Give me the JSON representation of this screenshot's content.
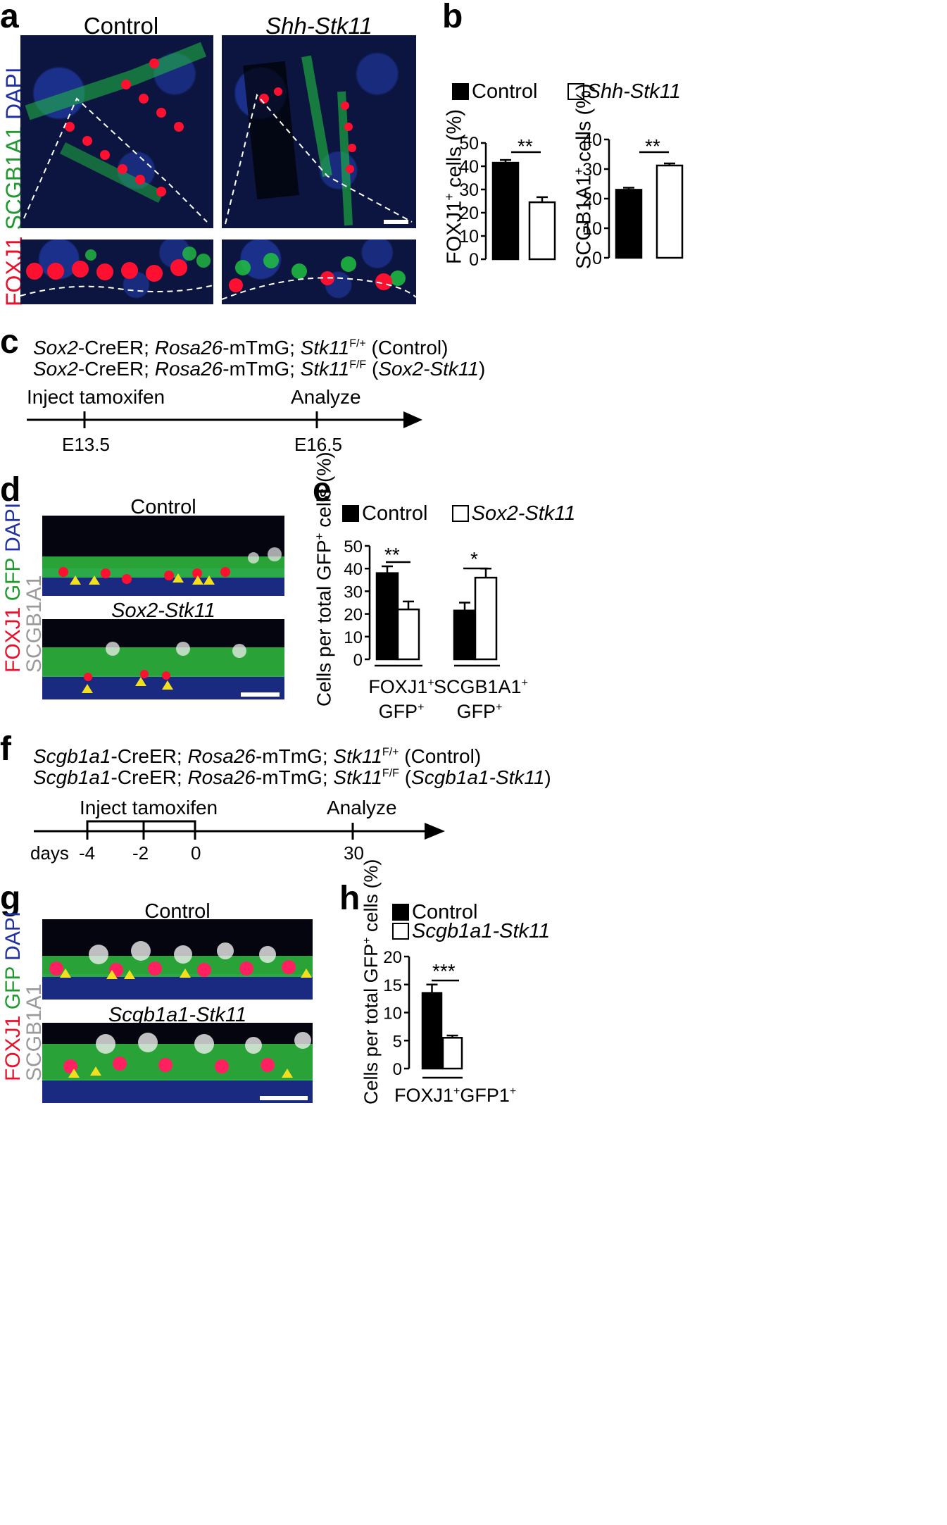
{
  "panels": {
    "a": {
      "label": "a",
      "col_control": "Control",
      "col_mutant": "Shh-Stk11",
      "stain": [
        {
          "text": "FOXJ1",
          "color": "#e8102a"
        },
        {
          "text": "SCGB1A1",
          "color": "#1e9a2e"
        },
        {
          "text": "DAPI",
          "color": "#2030a0"
        }
      ]
    },
    "b": {
      "label": "b",
      "legend_control": "Control",
      "legend_mutant": "Shh-Stk11",
      "ylabel1": "FOXJ1",
      "ylabel1_sup": "+",
      "ylabel1_suffix": " cells (%)",
      "ylabel2": "SCGB1A1",
      "ylabel2_sup": "+",
      "ylabel2_suffix": " cells (%)",
      "sig1": "**",
      "sig2": "**"
    },
    "c": {
      "label": "c",
      "line1": {
        "g1": "Sox2",
        "t1": "-CreER; ",
        "g2": "Rosa26",
        "t2": "-mTmG; ",
        "g3": "Stk11",
        "sup": "F/+",
        "t3": " (Control)"
      },
      "line2": {
        "g1": "Sox2",
        "t1": "-CreER; ",
        "g2": "Rosa26",
        "t2": "-mTmG; ",
        "g3": "Stk11",
        "sup": "F/F",
        "t3": " (",
        "g4": "Sox2-Stk11",
        "t4": ")"
      },
      "event1": "Inject tamoxifen",
      "event2": "Analyze",
      "tick1": "E13.5",
      "tick2": "E16.5"
    },
    "d": {
      "label": "d",
      "title_control": "Control",
      "title_mutant": "Sox2-Stk11",
      "stain": [
        {
          "text": "FOXJ1",
          "color": "#e8102a"
        },
        {
          "text": "GFP",
          "color": "#1e9a2e"
        },
        {
          "text": "DAPI",
          "color": "#2030a0"
        }
      ],
      "stain2": {
        "text": "SCGB1A1",
        "color": "#9a9a9a"
      }
    },
    "e": {
      "label": "e",
      "legend_control": "Control",
      "legend_mutant": "Sox2-Stk11",
      "ylabel_pre": "Cells per total GFP",
      "ylabel_sup": "+",
      "ylabel_suffix": " cells (%)",
      "group1_l1": "FOXJ1",
      "group1_l2": "GFP",
      "group2_l1": "SCGB1A1",
      "group2_l2": "GFP",
      "sup": "+",
      "sig1": "**",
      "sig2": "*"
    },
    "f": {
      "label": "f",
      "line1": {
        "g1": "Scgb1a1",
        "t1": "-CreER; ",
        "g2": "Rosa26",
        "t2": "-mTmG; ",
        "g3": "Stk11",
        "sup": "F/+",
        "t3": " (Control)"
      },
      "line2": {
        "g1": "Scgb1a1",
        "t1": "-CreER; ",
        "g2": "Rosa26",
        "t2": "-mTmG; ",
        "g3": "Stk11",
        "sup": "F/F",
        "t3": " (",
        "g4": "Scgb1a1-Stk11",
        "t4": ")"
      },
      "event1": "Inject tamoxifen",
      "event2": "Analyze",
      "days_label": "days",
      "ticks": [
        "-4",
        "-2",
        "0",
        "30"
      ]
    },
    "g": {
      "label": "g",
      "title_control": "Control",
      "title_mutant": "Scgb1a1-Stk11",
      "stain": [
        {
          "text": "FOXJ1",
          "color": "#e8102a"
        },
        {
          "text": "GFP",
          "color": "#1e9a2e"
        },
        {
          "text": "DAPI",
          "color": "#2030a0"
        }
      ],
      "stain2": {
        "text": "SCGB1A1",
        "color": "#9a9a9a"
      }
    },
    "h": {
      "label": "h",
      "legend_control": "Control",
      "legend_mutant": "Scgb1a1-Stk11",
      "ylabel_pre": "Cells per total GFP",
      "ylabel_sup": "+",
      "ylabel_suffix": " cells (%)",
      "group_l1": "FOXJ1",
      "group_sup": "+",
      "group_l2": "GFP1",
      "group_sup2": "+",
      "sig": "***"
    }
  },
  "chart_data": [
    {
      "id": "b-left",
      "type": "bar",
      "categories": [
        "Control",
        "Shh-Stk11"
      ],
      "values": [
        41.5,
        24.5
      ],
      "errors": [
        1.2,
        2.2
      ],
      "ylim": [
        0,
        50
      ],
      "yticks": [
        0,
        10,
        20,
        30,
        40,
        50
      ],
      "fills": [
        "#000000",
        "#ffffff"
      ],
      "ylabel": "FOXJ1+ cells (%)"
    },
    {
      "id": "b-right",
      "type": "bar",
      "categories": [
        "Control",
        "Shh-Stk11"
      ],
      "values": [
        23,
        31.2
      ],
      "errors": [
        0.7,
        0.7
      ],
      "ylim": [
        0,
        40
      ],
      "yticks": [
        0,
        10,
        20,
        30,
        40
      ],
      "fills": [
        "#000000",
        "#ffffff"
      ],
      "ylabel": "SCGB1A1+ cells (%)"
    },
    {
      "id": "e",
      "type": "bar",
      "categories": [
        "FOXJ1+ GFP+",
        "SCGB1A1+ GFP+"
      ],
      "series": [
        {
          "name": "Control",
          "values": [
            38,
            21.5
          ],
          "errors": [
            3,
            3.5
          ]
        },
        {
          "name": "Sox2-Stk11",
          "values": [
            22,
            36
          ],
          "errors": [
            3.5,
            4
          ]
        }
      ],
      "ylim": [
        0,
        50
      ],
      "yticks": [
        0,
        10,
        20,
        30,
        40,
        50
      ],
      "ylabel": "Cells per total GFP+ cells (%)"
    },
    {
      "id": "h",
      "type": "bar",
      "categories": [
        "FOXJ1+GFP1+"
      ],
      "series": [
        {
          "name": "Control",
          "values": [
            13.5
          ],
          "errors": [
            1.5
          ]
        },
        {
          "name": "Scgb1a1-Stk11",
          "values": [
            5.5
          ],
          "errors": [
            0.4
          ]
        }
      ],
      "ylim": [
        0,
        20
      ],
      "yticks": [
        0,
        5,
        10,
        15,
        20
      ],
      "ylabel": "Cells per total GFP+ cells (%)"
    }
  ]
}
